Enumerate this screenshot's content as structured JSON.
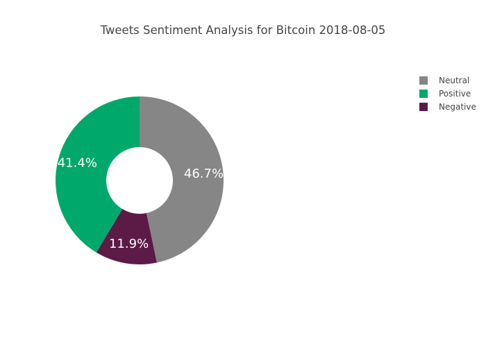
{
  "chart_data": {
    "type": "pie",
    "hole": true,
    "title": "Tweets Sentiment Analysis for Bitcoin 2018-08-05",
    "labels": [
      "Neutral",
      "Positive",
      "Negative"
    ],
    "values": [
      46.7,
      41.4,
      11.9
    ],
    "value_labels": [
      "46.7%",
      "41.4%",
      "11.9%"
    ],
    "colors": [
      "#868686",
      "#00a86b",
      "#5c1a47"
    ],
    "draw_order": [
      "Neutral",
      "Negative",
      "Positive"
    ],
    "direction": "clockwise",
    "legend": "top-right"
  }
}
